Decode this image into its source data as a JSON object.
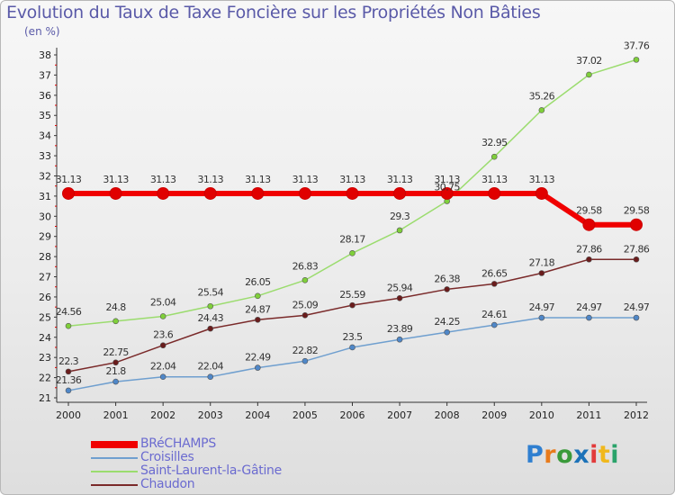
{
  "title": "Evolution du Taux de Taxe Foncière sur les Propriétés Non Bâties",
  "unit": "(en %)",
  "logo": {
    "text": "Proxiti",
    "colors": [
      "#2f7fd0",
      "#e87b1c",
      "#3a9a3a",
      "#1c72b8",
      "#e23b3b",
      "#f0b81c",
      "#2aa36a"
    ]
  },
  "legend": {
    "items": [
      {
        "label": "BRéCHAMPS",
        "color": "#f00000"
      },
      {
        "label": "Croisilles",
        "color": "#6f9fcf"
      },
      {
        "label": "Saint-Laurent-la-Gâtine",
        "color": "#9bdc6e"
      },
      {
        "label": "Chaudon",
        "color": "#7a2a2a"
      }
    ]
  },
  "chart_data": {
    "type": "line",
    "x": [
      "2000",
      "2001",
      "2002",
      "2003",
      "2004",
      "2005",
      "2006",
      "2007",
      "2008",
      "2009",
      "2010",
      "2011",
      "2012"
    ],
    "ylim": [
      21,
      38
    ],
    "yticks": [
      "21",
      "22",
      "23",
      "24",
      "25",
      "26",
      "27",
      "28",
      "29",
      "30",
      "31",
      "32",
      "33",
      "34",
      "35",
      "36",
      "37",
      "38"
    ],
    "grid": false,
    "series": [
      {
        "name": "BRéCHAMPS",
        "color": "#f00000",
        "marker_fill": "#e00000",
        "width": 6,
        "values": [
          31.13,
          31.13,
          31.13,
          31.13,
          31.13,
          31.13,
          31.13,
          31.13,
          31.13,
          31.13,
          31.13,
          29.58,
          29.58
        ],
        "labels": [
          "31.13",
          "31.13",
          "31.13",
          "31.13",
          "31.13",
          "31.13",
          "31.13",
          "31.13",
          "31.13",
          "31.13",
          "31.13",
          "29.58",
          "29.58"
        ]
      },
      {
        "name": "Croisilles",
        "color": "#6f9fcf",
        "marker_fill": "#4f87c8",
        "width": 1.5,
        "values": [
          21.36,
          21.8,
          22.04,
          22.04,
          22.49,
          22.82,
          23.5,
          23.89,
          24.25,
          24.61,
          24.97,
          24.97,
          24.97
        ],
        "labels": [
          "21.36",
          "21.8",
          "22.04",
          "22.04",
          "22.49",
          "22.82",
          "23.5",
          "23.89",
          "24.25",
          "24.61",
          "24.97",
          "24.97",
          "24.97"
        ]
      },
      {
        "name": "Saint-Laurent-la-Gâtine",
        "color": "#9bdc6e",
        "marker_fill": "#7fcf3a",
        "width": 1.5,
        "values": [
          24.56,
          24.8,
          25.04,
          25.54,
          26.05,
          26.83,
          28.17,
          29.3,
          30.75,
          32.95,
          35.26,
          37.02,
          37.76
        ],
        "labels": [
          "24.56",
          "24.8",
          "25.04",
          "25.54",
          "26.05",
          "26.83",
          "28.17",
          "29.3",
          "30.75",
          "32.95",
          "35.26",
          "37.02",
          "37.76"
        ]
      },
      {
        "name": "Chaudon",
        "color": "#7a2a2a",
        "marker_fill": "#6a1c1c",
        "width": 1.5,
        "values": [
          22.3,
          22.75,
          23.6,
          24.43,
          24.87,
          25.09,
          25.59,
          25.94,
          26.38,
          26.65,
          27.18,
          27.86,
          27.86
        ],
        "labels": [
          "22.3",
          "22.75",
          "23.6",
          "24.43",
          "24.87",
          "25.09",
          "25.59",
          "25.94",
          "26.38",
          "26.65",
          "27.18",
          "27.86",
          "27.86"
        ]
      }
    ]
  }
}
